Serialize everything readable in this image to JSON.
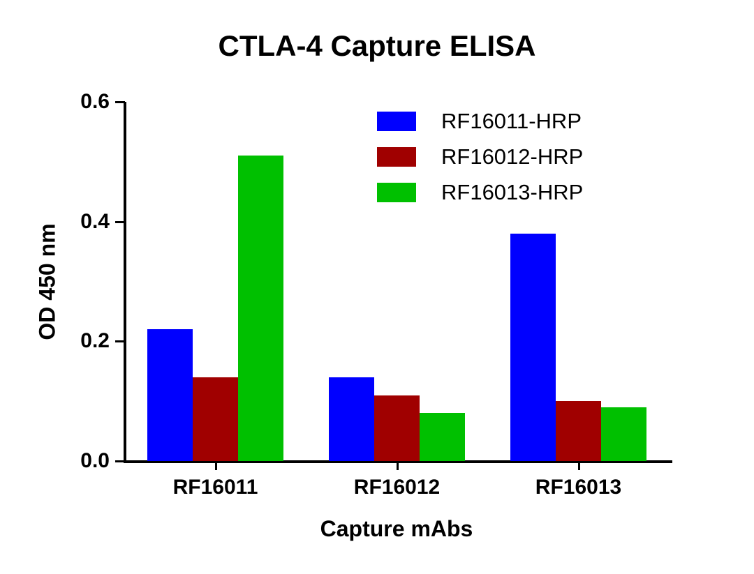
{
  "chart_data": {
    "type": "bar",
    "title": "CTLA-4 Capture ELISA",
    "xlabel": "Capture mAbs",
    "ylabel": "OD 450 nm",
    "ylim": [
      0,
      0.6
    ],
    "yticks": [
      "0.0",
      "0.2",
      "0.4",
      "0.6"
    ],
    "categories": [
      "RF16011",
      "RF16012",
      "RF16013"
    ],
    "series": [
      {
        "name": "RF16011-HRP",
        "color": "#0000ff",
        "values": [
          0.22,
          0.14,
          0.38
        ]
      },
      {
        "name": "RF16012-HRP",
        "color": "#a00000",
        "values": [
          0.14,
          0.11,
          0.1
        ]
      },
      {
        "name": "RF16013-HRP",
        "color": "#00c000",
        "values": [
          0.51,
          0.08,
          0.09
        ]
      }
    ],
    "legend_position": "top-right",
    "grid": false
  }
}
